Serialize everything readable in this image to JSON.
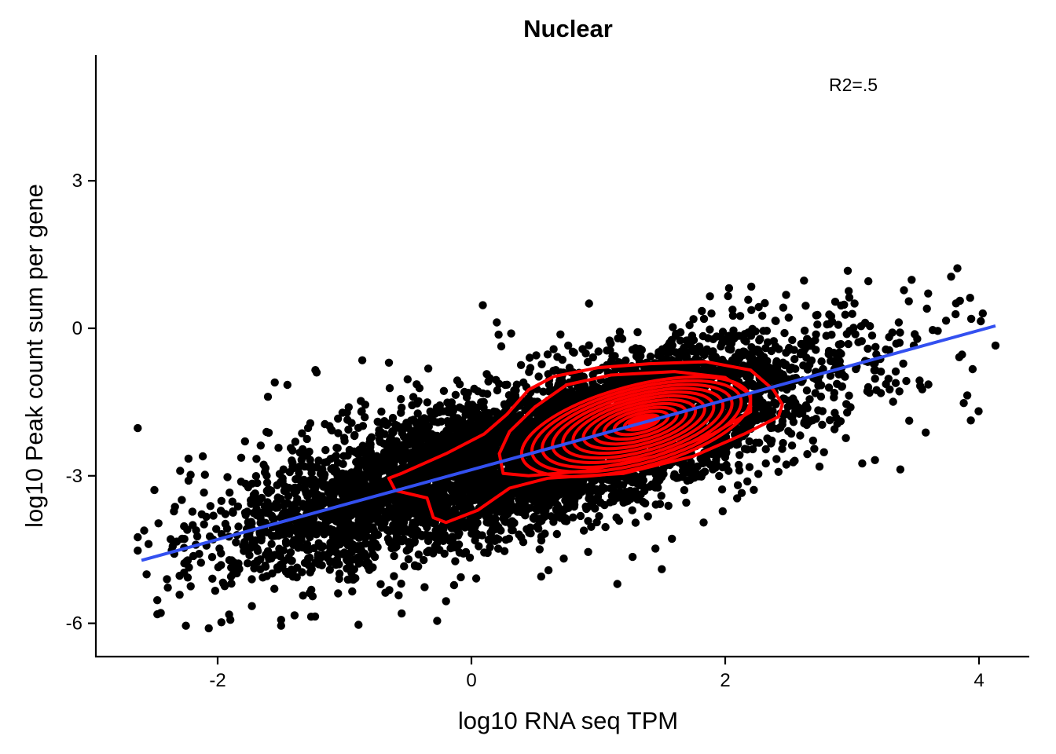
{
  "chart_data": {
    "type": "scatter",
    "title": "Nuclear",
    "xlabel": "log10 RNA seq TPM",
    "ylabel": "log10 Peak count sum per gene",
    "xlim": [
      -2.95,
      4.4
    ],
    "ylim": [
      -6.7,
      5.6
    ],
    "x_ticks": [
      -2,
      0,
      2,
      4
    ],
    "y_ticks": [
      3,
      0,
      -3,
      -6
    ],
    "x_tick_labels": [
      "-2",
      "0",
      "2",
      "4"
    ],
    "y_tick_labels": [
      "3",
      "0",
      "-3",
      "-6"
    ],
    "grid": false,
    "annotation": "R2=.5",
    "colors": {
      "points": "#000000",
      "fit_line": "#3350f0",
      "density": "#ff0000"
    },
    "fit_line": {
      "x": [
        -2.6,
        4.13
      ],
      "y": [
        -4.72,
        0.05
      ]
    },
    "density_center": {
      "x": 1.35,
      "y": -1.9
    },
    "outlier_points": [
      [
        3.83,
        1.22
      ],
      [
        3.78,
        1.05
      ],
      [
        3.93,
        0.62
      ],
      [
        4.13,
        -0.35
      ],
      [
        3.95,
        -0.83
      ],
      [
        3.88,
        -1.52
      ],
      [
        3.45,
        -1.88
      ],
      [
        3.58,
        -2.12
      ],
      [
        3.18,
        -2.68
      ],
      [
        3.08,
        -2.75
      ],
      [
        3.38,
        -2.87
      ],
      [
        2.32,
        -2.75
      ],
      [
        2.42,
        -2.92
      ],
      [
        2.13,
        -3.35
      ],
      [
        1.98,
        -3.72
      ],
      [
        1.83,
        -3.95
      ],
      [
        1.58,
        -4.28
      ],
      [
        1.45,
        -4.48
      ],
      [
        1.27,
        -4.65
      ],
      [
        1.5,
        -4.9
      ],
      [
        1.15,
        -5.2
      ],
      [
        0.92,
        -4.55
      ],
      [
        0.55,
        -5.05
      ],
      [
        0.09,
        0.47
      ],
      [
        0.2,
        0.12
      ],
      [
        1.88,
        0.65
      ],
      [
        2.48,
        0.68
      ],
      [
        -0.86,
        -0.65
      ],
      [
        -0.65,
        -0.7
      ],
      [
        -0.34,
        -0.82
      ],
      [
        -2.63,
        -2.03
      ],
      [
        -2.63,
        -4.25
      ],
      [
        -2.63,
        -4.52
      ],
      [
        -2.28,
        -4.28
      ],
      [
        -2.3,
        -5.42
      ],
      [
        -2.25,
        -6.05
      ],
      [
        -2.07,
        -6.1
      ],
      [
        -1.97,
        -5.98
      ],
      [
        -1.9,
        -5.93
      ],
      [
        -1.5,
        -5.93
      ],
      [
        -1.5,
        -6.05
      ],
      [
        -0.89,
        -6.03
      ],
      [
        -0.27,
        -5.95
      ],
      [
        -1.73,
        -5.65
      ],
      [
        -0.55,
        -5.8
      ],
      [
        -0.2,
        -5.55
      ],
      [
        -1.23,
        -0.85
      ],
      [
        -1.22,
        -0.9
      ],
      [
        -1.45,
        -1.15
      ],
      [
        -1.55,
        -1.1
      ],
      [
        -2.23,
        -2.65
      ],
      [
        -2.1,
        -2.98
      ],
      [
        0.75,
        -2.75
      ],
      [
        2.82,
        0.28
      ]
    ]
  }
}
